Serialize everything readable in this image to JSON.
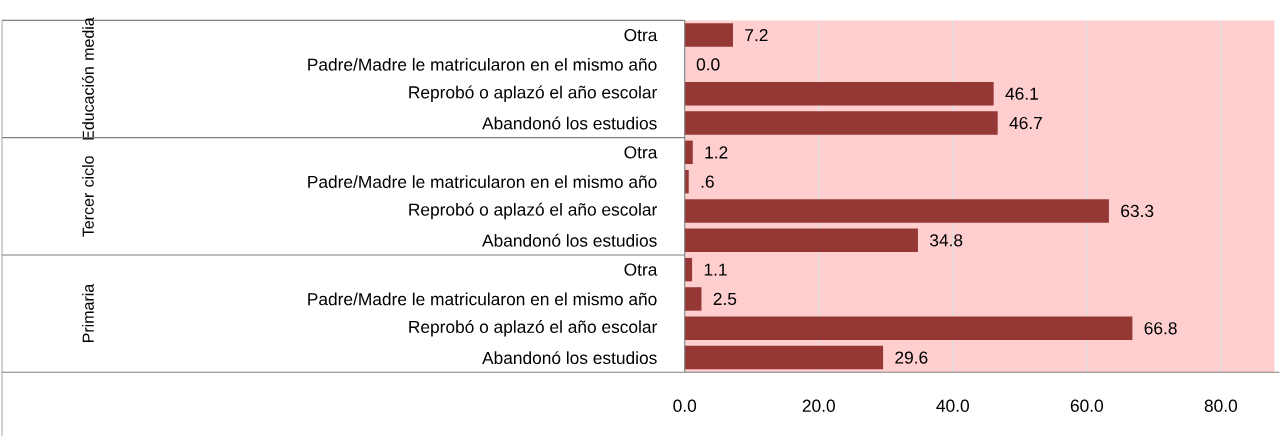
{
  "chart_data": {
    "type": "bar",
    "orientation": "horizontal",
    "categories": [
      "Otra",
      "Padre/Madre le matricularon en el mismo año",
      "Reprobó o aplazó el año escolar",
      "Abandonó los estudios",
      "Otra",
      "Padre/Madre le matricularon en el mismo año",
      "Reprobó o aplazó el año escolar",
      "Abandonó los estudios",
      "Otra",
      "Padre/Madre le matricularon en el mismo año",
      "Reprobó o aplazó el año escolar",
      "Abandonó los estudios"
    ],
    "values": [
      7.2,
      0.0,
      46.1,
      46.7,
      1.2,
      0.6,
      63.3,
      34.8,
      1.1,
      2.5,
      66.8,
      29.6
    ],
    "value_labels": [
      "7.2",
      "0.0",
      "46.1",
      "46.7",
      "1.2",
      ".6",
      "63.3",
      "34.8",
      "1.1",
      "2.5",
      "66.8",
      "29.6"
    ],
    "color": "#953735",
    "xlim": [
      0,
      88
    ],
    "xticks": [
      {
        "value": 0,
        "label": "0.0"
      },
      {
        "value": 20,
        "label": "20.0"
      },
      {
        "value": 40,
        "label": "40.0"
      },
      {
        "value": 60,
        "label": "60.0"
      },
      {
        "value": 80,
        "label": "80.0"
      }
    ],
    "grid": "x",
    "annotations": [
      "Educación media",
      "Tercer ciclo",
      "Primaria"
    ]
  }
}
